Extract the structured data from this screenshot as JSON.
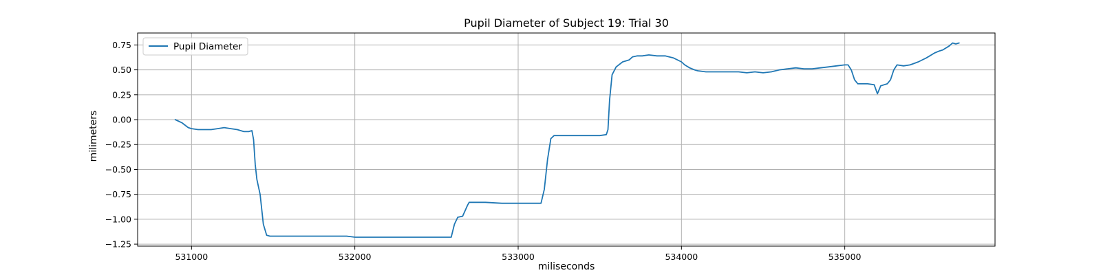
{
  "chart_data": {
    "type": "line",
    "title": "Pupil Diameter of Subject 19: Trial 30",
    "xlabel": "miliseconds",
    "ylabel": "milimeters",
    "xlim": [
      530670,
      535920
    ],
    "ylim": [
      -1.27,
      0.87
    ],
    "xticks": [
      531000,
      532000,
      533000,
      534000,
      535000
    ],
    "xtick_labels": [
      "531000",
      "532000",
      "533000",
      "534000",
      "535000"
    ],
    "yticks": [
      0.75,
      0.5,
      0.25,
      0.0,
      -0.25,
      -0.5,
      -0.75,
      -1.0,
      -1.25
    ],
    "ytick_labels": [
      "0.75",
      "0.50",
      "0.25",
      "0.00",
      "−0.25",
      "−0.50",
      "−0.75",
      "−1.00",
      "−1.25"
    ],
    "grid": true,
    "legend_position": "top-left",
    "series": [
      {
        "name": "Pupil Diameter",
        "color": "#1f77b4",
        "x": [
          530900,
          530940,
          530980,
          531000,
          531040,
          531080,
          531120,
          531160,
          531200,
          531240,
          531280,
          531320,
          531350,
          531370,
          531380,
          531390,
          531400,
          531420,
          531440,
          531460,
          531480,
          531500,
          531600,
          531700,
          531800,
          531900,
          531950,
          532000,
          532100,
          532200,
          532300,
          532400,
          532500,
          532530,
          532560,
          532590,
          532610,
          532630,
          532660,
          532690,
          532700,
          532720,
          532800,
          532900,
          533000,
          533100,
          533140,
          533160,
          533180,
          533200,
          533220,
          533300,
          533400,
          533500,
          533540,
          533550,
          533560,
          533575,
          533600,
          533640,
          533680,
          533700,
          533730,
          533760,
          533800,
          533850,
          533900,
          533950,
          534000,
          534020,
          534050,
          534080,
          534100,
          534150,
          534200,
          534250,
          534300,
          534350,
          534400,
          534450,
          534500,
          534550,
          534600,
          534650,
          534700,
          534750,
          534800,
          534850,
          534900,
          534950,
          535000,
          535020,
          535040,
          535060,
          535080,
          535100,
          535140,
          535180,
          535200,
          535220,
          535260,
          535280,
          535300,
          535320,
          535360,
          535400,
          535450,
          535500,
          535550,
          535580,
          535600,
          535640,
          535660,
          535680,
          535700
        ],
        "y": [
          0.0,
          -0.03,
          -0.08,
          -0.09,
          -0.1,
          -0.1,
          -0.1,
          -0.09,
          -0.08,
          -0.09,
          -0.1,
          -0.12,
          -0.12,
          -0.11,
          -0.2,
          -0.45,
          -0.6,
          -0.75,
          -1.05,
          -1.16,
          -1.17,
          -1.17,
          -1.17,
          -1.17,
          -1.17,
          -1.17,
          -1.17,
          -1.18,
          -1.18,
          -1.18,
          -1.18,
          -1.18,
          -1.18,
          -1.18,
          -1.18,
          -1.18,
          -1.05,
          -0.98,
          -0.97,
          -0.86,
          -0.83,
          -0.83,
          -0.83,
          -0.84,
          -0.84,
          -0.84,
          -0.84,
          -0.7,
          -0.4,
          -0.19,
          -0.16,
          -0.16,
          -0.16,
          -0.16,
          -0.15,
          -0.1,
          0.2,
          0.45,
          0.53,
          0.58,
          0.6,
          0.63,
          0.64,
          0.64,
          0.65,
          0.64,
          0.64,
          0.62,
          0.58,
          0.55,
          0.52,
          0.5,
          0.49,
          0.48,
          0.48,
          0.48,
          0.48,
          0.48,
          0.47,
          0.48,
          0.47,
          0.48,
          0.5,
          0.51,
          0.52,
          0.51,
          0.51,
          0.52,
          0.53,
          0.54,
          0.55,
          0.55,
          0.5,
          0.4,
          0.36,
          0.36,
          0.36,
          0.35,
          0.26,
          0.34,
          0.36,
          0.4,
          0.5,
          0.55,
          0.54,
          0.55,
          0.58,
          0.62,
          0.67,
          0.69,
          0.7,
          0.74,
          0.77,
          0.76,
          0.77
        ]
      }
    ]
  }
}
